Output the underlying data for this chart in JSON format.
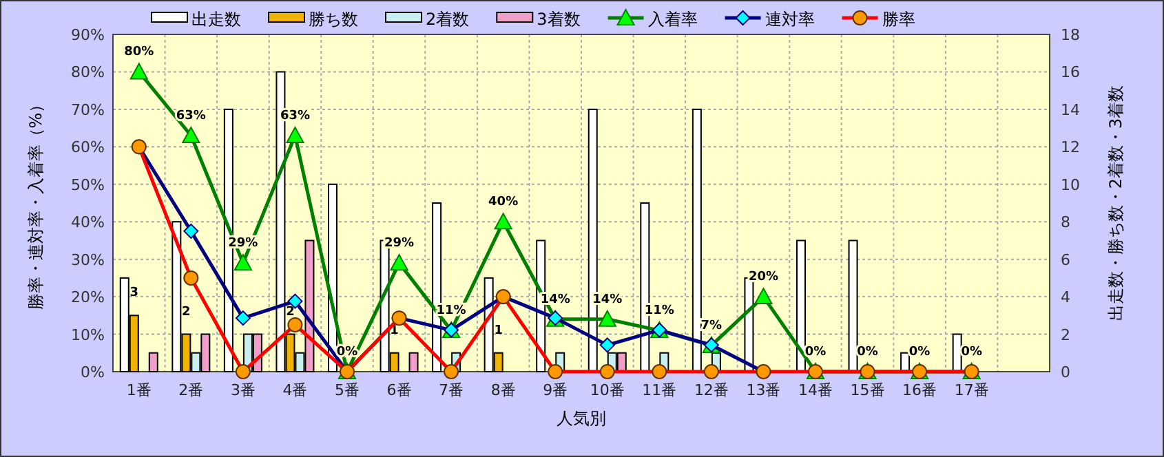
{
  "chart_data": {
    "type": "bar",
    "xlabel": "人気別",
    "ylabel": "勝率・連対率・入着率（%）",
    "y2label": "出走数・勝ち数・2着数・3着数",
    "categories": [
      "1番",
      "2番",
      "3番",
      "4番",
      "5番",
      "6番",
      "7番",
      "8番",
      "9番",
      "10番",
      "11番",
      "12番",
      "13番",
      "14番",
      "15番",
      "16番",
      "17番",
      null
    ],
    "series": [
      {
        "name": "出走数",
        "axis": "y2",
        "color": "#ffffff",
        "values": [
          5,
          8,
          14,
          16,
          10,
          7,
          9,
          5,
          7,
          14,
          9,
          14,
          5,
          7,
          7,
          1,
          2,
          null
        ]
      },
      {
        "name": "勝ち数",
        "axis": "y2",
        "color": "#f0b400",
        "values": [
          3,
          2,
          0,
          2,
          0,
          1,
          0,
          1,
          0,
          0,
          0,
          0,
          0,
          0,
          0,
          0,
          0,
          null
        ],
        "value_labels": [
          "3",
          "2",
          null,
          "2",
          null,
          "1",
          null,
          "1",
          null,
          null,
          null,
          null,
          null,
          null,
          null,
          null,
          null,
          null
        ]
      },
      {
        "name": "2着数",
        "axis": "y2",
        "color": "#c8f0f0",
        "values": [
          0,
          1,
          2,
          1,
          0,
          0,
          1,
          0,
          1,
          1,
          1,
          1,
          0,
          0,
          0,
          0,
          0,
          null
        ]
      },
      {
        "name": "3着数",
        "axis": "y2",
        "color": "#f0a0c8",
        "values": [
          1,
          2,
          2,
          7,
          0,
          1,
          0,
          0,
          0,
          1,
          0,
          0,
          0,
          0,
          0,
          0,
          0,
          null
        ]
      },
      {
        "name": "入着率",
        "type": "line",
        "color": "#008000",
        "marker": "triangle",
        "values": [
          80,
          63,
          29,
          63,
          0,
          29,
          11,
          40,
          14,
          14,
          11,
          7,
          20,
          0,
          0,
          0,
          0,
          null
        ],
        "value_labels": [
          "80%",
          "63%",
          "29%",
          "63%",
          "0%",
          "29%",
          "11%",
          "40%",
          "14%",
          "14%",
          "11%",
          "7%",
          "20%",
          "0%",
          "0%",
          "0%",
          "0%",
          null
        ]
      },
      {
        "name": "連対率",
        "type": "line",
        "color": "#000080",
        "marker": "diamond",
        "values": [
          60,
          37.5,
          14.3,
          18.8,
          0,
          14.3,
          11.1,
          20,
          14.3,
          7.1,
          11.1,
          7.1,
          0,
          null,
          null,
          null,
          null,
          null
        ]
      },
      {
        "name": "勝率",
        "type": "line",
        "color": "#ff0000",
        "marker": "circle",
        "values": [
          60,
          25,
          0,
          12.5,
          0,
          14.3,
          0,
          20,
          0,
          0,
          0,
          0,
          0,
          0,
          0,
          0,
          0,
          null
        ]
      }
    ],
    "ylim": [
      0,
      90
    ],
    "yticks": [
      {
        "value": 0,
        "label": "0%"
      },
      {
        "value": 10,
        "label": "10%"
      },
      {
        "value": 20,
        "label": "20%"
      },
      {
        "value": 30,
        "label": "30%"
      },
      {
        "value": 40,
        "label": "40%"
      },
      {
        "value": 50,
        "label": "50%"
      },
      {
        "value": 60,
        "label": "60%"
      },
      {
        "value": 70,
        "label": "70%"
      },
      {
        "value": 80,
        "label": "80%"
      },
      {
        "value": 90,
        "label": "90%"
      }
    ],
    "y2lim": [
      0,
      18
    ],
    "y2ticks": [
      0,
      2,
      4,
      6,
      8,
      10,
      12,
      14,
      16,
      18
    ],
    "grid": true,
    "legend": "top"
  }
}
